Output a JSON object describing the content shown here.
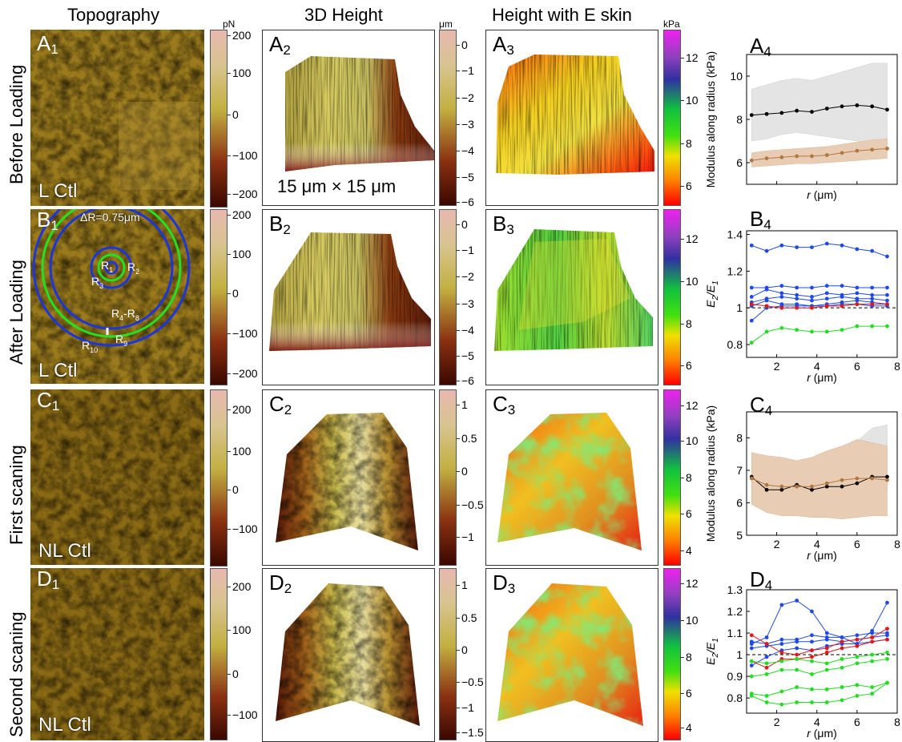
{
  "headers": {
    "topography": "Topography",
    "height3d": "3D Height",
    "height_e": "Height with E skin"
  },
  "units": {
    "force": "pN",
    "height": "μm",
    "modulus": "kPa"
  },
  "row_labels": [
    "Before Loading",
    "After Loading",
    "First scaning",
    "Second scaning"
  ],
  "topo": {
    "A1": {
      "label": "A",
      "sub": "1",
      "text": "L Ctl"
    },
    "B1": {
      "label": "B",
      "sub": "1",
      "text": "L Ctl"
    },
    "C1": {
      "label": "C",
      "sub": "1",
      "text": "NL Ctl"
    },
    "D1": {
      "label": "D",
      "sub": "1",
      "text": "NL Ctl"
    }
  },
  "rings": {
    "delta": "ΔR=0.75μm",
    "r1": "R",
    "r1s": "1",
    "r2": "R",
    "r2s": "2",
    "r3": "R",
    "r3s": "3",
    "r48": "R",
    "r48s": "4",
    "r48dash": "-R",
    "r48e": "8",
    "r9": "R",
    "r9s": "9",
    "r10": "R",
    "r10s": "10"
  },
  "colorbar_ticks": {
    "topoA": [
      "200",
      "100",
      "0",
      "−100",
      "−200"
    ],
    "topoB": [
      "200",
      "100",
      "0",
      "−100",
      "−200"
    ],
    "topoC": [
      "200",
      "100",
      "0",
      "−100"
    ],
    "topoD": [
      "200",
      "100",
      "0",
      "−100"
    ],
    "heightA": [
      "0",
      "−1",
      "−2",
      "−3",
      "−4",
      "−5",
      "−6"
    ],
    "heightB": [
      "0",
      "−1",
      "−2",
      "−3",
      "−4",
      "−5",
      "−6"
    ],
    "heightC": [
      "1",
      "0.5",
      "0",
      "−0.5",
      "−1"
    ],
    "heightD": [
      "1",
      "0.5",
      "0",
      "−0.5",
      "−1",
      "−1.5"
    ],
    "modA": [
      "12",
      "10",
      "8",
      "6"
    ],
    "modB": [
      "12",
      "10",
      "8",
      "6"
    ],
    "modC": [
      "12",
      "10",
      "8",
      "6",
      "4"
    ],
    "modD": [
      "12",
      "10",
      "8",
      "6",
      "4"
    ]
  },
  "panels": {
    "A2": {
      "label": "A",
      "sub": "2",
      "caption": "15 μm × 15 μm"
    },
    "B2": {
      "label": "B",
      "sub": "2"
    },
    "C2": {
      "label": "C",
      "sub": "2"
    },
    "D2": {
      "label": "D",
      "sub": "2"
    },
    "A3": {
      "label": "A",
      "sub": "3"
    },
    "B3": {
      "label": "B",
      "sub": "3"
    },
    "C3": {
      "label": "C",
      "sub": "3"
    },
    "D3": {
      "label": "D",
      "sub": "3"
    },
    "A4": {
      "label": "A",
      "sub": "4"
    },
    "B4": {
      "label": "B",
      "sub": "4"
    },
    "C4": {
      "label": "C",
      "sub": "4"
    },
    "D4": {
      "label": "D",
      "sub": "4"
    }
  },
  "colors": {
    "black_series": "#000000",
    "brown_series": "#b07840",
    "brown_band": "#e8cdb4",
    "gray_band": "#e4e4e4",
    "blue": "#1f49e8",
    "red": "#e01818",
    "green": "#22dd22"
  },
  "chart_data": [
    {
      "id": "A4",
      "type": "line",
      "xlabel": "r (μm)",
      "ylabel": "Modulus along radius (kPa)",
      "ylim": [
        5,
        11
      ],
      "yticks": [
        6,
        8,
        10
      ],
      "xlim": [
        0.5,
        8
      ],
      "xticks": [],
      "series": [
        {
          "color": "black",
          "x": [
            0.75,
            1.5,
            2.25,
            3,
            3.75,
            4.5,
            5.25,
            6,
            6.75,
            7.5
          ],
          "y": [
            8.2,
            8.25,
            8.3,
            8.4,
            8.35,
            8.5,
            8.6,
            8.65,
            8.6,
            8.45
          ],
          "band_color": "gray",
          "band_lo": [
            7,
            7.1,
            7.3,
            7.4,
            7.3,
            7.2,
            7.1,
            7,
            6.8,
            6.7
          ],
          "band_hi": [
            9.4,
            9.6,
            9.8,
            9.9,
            9.8,
            10,
            10.2,
            10.4,
            10.6,
            10.6
          ]
        },
        {
          "color": "brown",
          "x": [
            0.75,
            1.5,
            2.25,
            3,
            3.75,
            4.5,
            5.25,
            6,
            6.75,
            7.5
          ],
          "y": [
            6.1,
            6.2,
            6.25,
            6.3,
            6.3,
            6.35,
            6.45,
            6.55,
            6.6,
            6.65
          ],
          "band_color": "brown",
          "band_lo": [
            5.8,
            5.85,
            5.9,
            5.95,
            5.95,
            6,
            6.05,
            6.1,
            6.15,
            6.2
          ],
          "band_hi": [
            6.45,
            6.55,
            6.6,
            6.65,
            6.7,
            6.75,
            6.85,
            6.95,
            7.05,
            7.1
          ]
        }
      ]
    },
    {
      "id": "B4",
      "type": "line",
      "xlabel": "r (μm)",
      "ylabel": "E2/E1",
      "ylim": [
        0.73,
        1.42
      ],
      "yticks": [
        0.8,
        1,
        1.2,
        1.4
      ],
      "xlim": [
        0.5,
        8
      ],
      "xticks": [
        2,
        4,
        6,
        8
      ],
      "reference_line": 1,
      "series": [
        {
          "color": "blue",
          "x": [
            0.75,
            1.5,
            2.25,
            3,
            3.75,
            4.5,
            5.25,
            6,
            6.75,
            7.5
          ],
          "y": [
            1.34,
            1.31,
            1.34,
            1.33,
            1.33,
            1.35,
            1.34,
            1.32,
            1.31,
            1.28
          ]
        },
        {
          "color": "blue",
          "x": [
            0.75,
            1.5,
            2.25,
            3,
            3.75,
            4.5,
            5.25,
            6,
            6.75,
            7.5
          ],
          "y": [
            1.11,
            1.11,
            1.12,
            1.11,
            1.11,
            1.12,
            1.12,
            1.11,
            1.11,
            1.11
          ]
        },
        {
          "color": "blue",
          "x": [
            0.75,
            1.5,
            2.25,
            3,
            3.75,
            4.5,
            5.25,
            6,
            6.75,
            7.5
          ],
          "y": [
            1.06,
            1.1,
            1.08,
            1.07,
            1.06,
            1.08,
            1.07,
            1.08,
            1.07,
            1.07
          ]
        },
        {
          "color": "blue",
          "x": [
            0.75,
            1.5,
            2.25,
            3,
            3.75,
            4.5,
            5.25,
            6,
            6.75,
            7.5
          ],
          "y": [
            1.03,
            1.05,
            1.06,
            1.05,
            1.04,
            1.05,
            1.06,
            1.05,
            1.05,
            1.04
          ]
        },
        {
          "color": "blue",
          "x": [
            0.75,
            1.5,
            2.25,
            3,
            3.75,
            4.5,
            5.25,
            6,
            6.75,
            7.5
          ],
          "y": [
            1.01,
            1.04,
            1.02,
            1.02,
            1.01,
            1.02,
            1.03,
            1.04,
            1.03,
            1.02
          ]
        },
        {
          "color": "blue",
          "x": [
            0.75,
            1.5,
            2.25,
            3,
            3.75,
            4.5,
            5.25,
            6,
            6.75,
            7.5
          ],
          "y": [
            0.93,
            1.0,
            1.01,
            1.01,
            1.01,
            1.01,
            1.02,
            1.02,
            1.01,
            1.01
          ]
        },
        {
          "color": "red",
          "x": [
            0.75,
            1.5,
            2.25,
            3,
            3.75,
            4.5,
            5.25,
            6,
            6.75,
            7.5
          ],
          "y": [
            1.02,
            1.01,
            1.0,
            1.0,
            1.0,
            1.01,
            1.01,
            1.02,
            1.02,
            1.02
          ]
        },
        {
          "color": "green",
          "x": [
            0.75,
            1.5,
            2.25,
            3,
            3.75,
            4.5,
            5.25,
            6,
            6.75,
            7.5
          ],
          "y": [
            0.81,
            0.87,
            0.89,
            0.88,
            0.87,
            0.87,
            0.88,
            0.9,
            0.9,
            0.9
          ]
        }
      ]
    },
    {
      "id": "C4",
      "type": "line",
      "xlabel": "r (μm)",
      "ylabel": "Modulus along radius (kPa)",
      "ylim": [
        5,
        8.8
      ],
      "yticks": [
        5,
        6,
        7,
        8
      ],
      "xlim": [
        0.5,
        8
      ],
      "xticks": [
        2,
        4,
        6,
        8
      ],
      "series": [
        {
          "color": "black",
          "x": [
            0.75,
            1.5,
            2.25,
            3,
            3.75,
            4.5,
            5.25,
            6,
            6.75,
            7.5
          ],
          "y": [
            6.8,
            6.4,
            6.4,
            6.55,
            6.4,
            6.5,
            6.5,
            6.6,
            6.8,
            6.8
          ],
          "band_color": "gray",
          "band_lo": [
            6.6,
            6.2,
            6.1,
            6.0,
            5.8,
            5.7,
            5.9,
            6.1,
            6.2,
            6.4
          ],
          "band_hi": [
            7.0,
            6.8,
            7.1,
            7.3,
            7.0,
            7.2,
            7.5,
            7.9,
            8.3,
            8.4
          ]
        },
        {
          "color": "brown",
          "x": [
            0.75,
            1.5,
            2.25,
            3,
            3.75,
            4.5,
            5.25,
            6,
            6.75,
            7.5
          ],
          "y": [
            6.75,
            6.55,
            6.5,
            6.5,
            6.5,
            6.6,
            6.7,
            6.75,
            6.75,
            6.7
          ],
          "band_color": "brown",
          "band_lo": [
            5.95,
            5.7,
            5.6,
            5.6,
            5.55,
            5.55,
            5.5,
            5.55,
            5.6,
            5.6
          ],
          "band_hi": [
            7.55,
            7.45,
            7.4,
            7.3,
            7.4,
            7.6,
            7.75,
            7.95,
            7.85,
            7.75
          ]
        }
      ]
    },
    {
      "id": "D4",
      "type": "line",
      "xlabel": "r (μm)",
      "ylabel": "E2/E1",
      "ylim": [
        0.73,
        1.3
      ],
      "yticks": [
        0.8,
        0.9,
        1,
        1.1,
        1.2,
        1.3
      ],
      "xlim": [
        0.5,
        8
      ],
      "xticks": [
        2,
        4,
        6,
        8
      ],
      "reference_line": 1,
      "series": [
        {
          "color": "blue",
          "x": [
            0.75,
            1.5,
            2.25,
            3,
            3.75,
            4.5,
            5.25,
            6,
            6.75,
            7.5
          ],
          "y": [
            1.05,
            1.08,
            1.23,
            1.25,
            1.2,
            1.1,
            1.08,
            1.05,
            1.11,
            1.24
          ]
        },
        {
          "color": "blue",
          "x": [
            0.75,
            1.5,
            2.25,
            3,
            3.75,
            4.5,
            5.25,
            6,
            6.75,
            7.5
          ],
          "y": [
            1.06,
            1.05,
            1.07,
            1.07,
            1.09,
            1.08,
            1.08,
            1.09,
            1.1,
            1.1
          ]
        },
        {
          "color": "blue",
          "x": [
            0.75,
            1.5,
            2.25,
            3,
            3.75,
            4.5,
            5.25,
            6,
            6.75,
            7.5
          ],
          "y": [
            1.03,
            1.04,
            1.05,
            1.06,
            1.06,
            1.07,
            1.06,
            1.07,
            1.08,
            1.09
          ]
        },
        {
          "color": "blue",
          "x": [
            0.75,
            1.5,
            2.25,
            3,
            3.75,
            4.5,
            5.25,
            6,
            6.75,
            7.5
          ],
          "y": [
            0.95,
            0.99,
            1.02,
            1.03,
            1.02,
            1.04,
            1.05,
            1.05,
            1.06,
            1.07
          ]
        },
        {
          "color": "red",
          "x": [
            0.75,
            1.5,
            2.25,
            3,
            3.75,
            4.5,
            5.25,
            6,
            6.75,
            7.5
          ],
          "y": [
            1.09,
            1.05,
            1.01,
            1.0,
            1.02,
            1.03,
            1.06,
            1.07,
            1.08,
            1.12
          ]
        },
        {
          "color": "red",
          "x": [
            0.75,
            1.5,
            2.25,
            3,
            3.75,
            4.5,
            5.25,
            6,
            6.75,
            7.5
          ],
          "y": [
            0.97,
            0.94,
            0.98,
            0.98,
            0.99,
            1.01,
            1.03,
            1.04,
            1.06,
            1.07
          ]
        },
        {
          "color": "green",
          "x": [
            0.75,
            1.5,
            2.25,
            3,
            3.75,
            4.5,
            5.25,
            6,
            6.75,
            7.5
          ],
          "y": [
            0.97,
            0.96,
            0.97,
            0.98,
            0.97,
            0.96,
            0.98,
            0.99,
            1.0,
            1.01
          ]
        },
        {
          "color": "green",
          "x": [
            0.75,
            1.5,
            2.25,
            3,
            3.75,
            4.5,
            5.25,
            6,
            6.75,
            7.5
          ],
          "y": [
            0.9,
            0.91,
            0.93,
            0.93,
            0.91,
            0.93,
            0.94,
            0.96,
            0.97,
            0.98
          ]
        },
        {
          "color": "green",
          "x": [
            0.75,
            1.5,
            2.25,
            3,
            3.75,
            4.5,
            5.25,
            6,
            6.75,
            7.5
          ],
          "y": [
            0.82,
            0.81,
            0.83,
            0.85,
            0.84,
            0.84,
            0.85,
            0.86,
            0.85,
            0.87
          ]
        },
        {
          "color": "green",
          "x": [
            0.75,
            1.5,
            2.25,
            3,
            3.75,
            4.5,
            5.25,
            6,
            6.75,
            7.5
          ],
          "y": [
            0.81,
            0.78,
            0.77,
            0.78,
            0.78,
            0.78,
            0.79,
            0.81,
            0.82,
            0.87
          ]
        }
      ]
    }
  ]
}
